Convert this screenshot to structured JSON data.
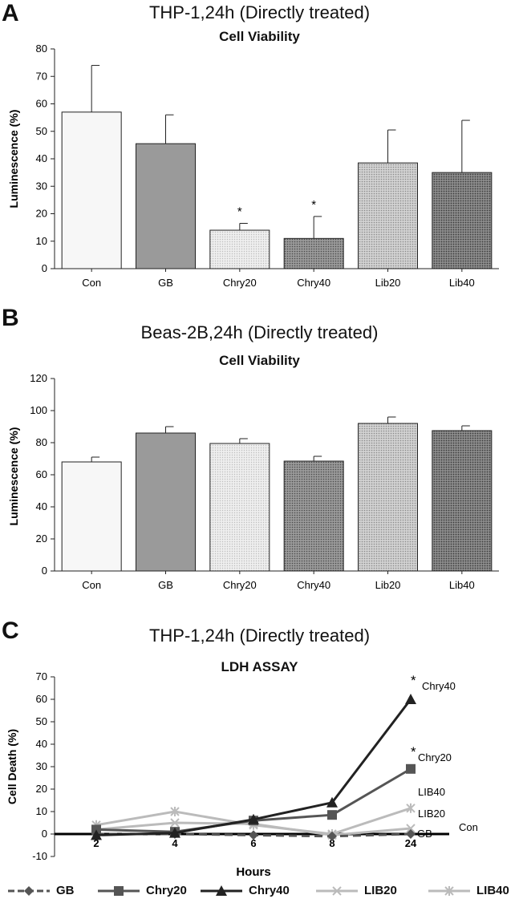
{
  "chart_data": [
    {
      "panel": "A",
      "type": "bar",
      "title": "THP-1,24h (Directly treated)",
      "subtitle": "Cell Viability",
      "xlabel": "",
      "ylabel": "Luminescence (%)",
      "ylim": [
        0,
        80
      ],
      "yticks": [
        0,
        10,
        20,
        30,
        40,
        50,
        60,
        70,
        80
      ],
      "categories": [
        "Con",
        "GB",
        "Chry20",
        "Chry40",
        "Lib20",
        "Lib40"
      ],
      "values": [
        57,
        45.5,
        14,
        11,
        38.5,
        35
      ],
      "errors": [
        17,
        10.5,
        2.5,
        8,
        12,
        19
      ],
      "significance": [
        "",
        "",
        "*",
        "*",
        "",
        ""
      ],
      "fills": [
        "#f7f7f7",
        "#9a9a9a",
        "dots-light",
        "dots-dark",
        "dots-mid",
        "dots-check"
      ],
      "grid": false
    },
    {
      "panel": "B",
      "type": "bar",
      "title": "Beas-2B,24h (Directly treated)",
      "subtitle": "Cell Viability",
      "xlabel": "",
      "ylabel": "Luminescence (%)",
      "ylim": [
        0,
        120
      ],
      "yticks": [
        0,
        20,
        40,
        60,
        80,
        100,
        120
      ],
      "categories": [
        "Con",
        "GB",
        "Chry20",
        "Chry40",
        "Lib20",
        "Lib40"
      ],
      "values": [
        68,
        86,
        79.5,
        68.5,
        92,
        87.5
      ],
      "errors": [
        3,
        4,
        3,
        3,
        4,
        3
      ],
      "significance": [
        "",
        "",
        "",
        "",
        "",
        ""
      ],
      "fills": [
        "#f7f7f7",
        "#9a9a9a",
        "dots-light",
        "dots-dark",
        "dots-mid",
        "dots-check"
      ],
      "grid": false
    },
    {
      "panel": "C",
      "type": "line",
      "title": "THP-1,24h (Directly treated)",
      "subtitle": "LDH ASSAY",
      "xlabel": "Hours",
      "ylabel": "Cell Death (%)",
      "ylim": [
        -10,
        70
      ],
      "yticks": [
        -10,
        0,
        10,
        20,
        30,
        40,
        50,
        60,
        70
      ],
      "categories": [
        "2",
        "4",
        "6",
        "8",
        "24"
      ],
      "grid": false,
      "legend_position": "bottom",
      "baseline_label": "Con",
      "series": [
        {
          "name": "GB",
          "values": [
            0,
            0,
            -0.5,
            -1,
            0
          ],
          "color": "#555555",
          "marker": "diamond",
          "dash": true,
          "end_label": "GB"
        },
        {
          "name": "Chry20",
          "values": [
            2,
            1,
            6,
            8.5,
            29
          ],
          "color": "#555555",
          "marker": "square",
          "dash": false,
          "end_label": "Chry20",
          "significance": "*"
        },
        {
          "name": "Chry40",
          "values": [
            -0.5,
            0.5,
            6.5,
            14,
            60
          ],
          "color": "#222222",
          "marker": "triangle",
          "dash": false,
          "end_label": "Chry40",
          "significance": "*"
        },
        {
          "name": "LIB20",
          "values": [
            2,
            5,
            4.5,
            -0.5,
            2.5
          ],
          "color": "#bbbbbb",
          "marker": "x",
          "dash": false,
          "end_label": "LIB20"
        },
        {
          "name": "LIB40",
          "values": [
            4,
            10,
            4,
            0,
            11.5
          ],
          "color": "#bbbbbb",
          "marker": "star",
          "dash": false,
          "end_label": "LIB40"
        }
      ]
    }
  ]
}
